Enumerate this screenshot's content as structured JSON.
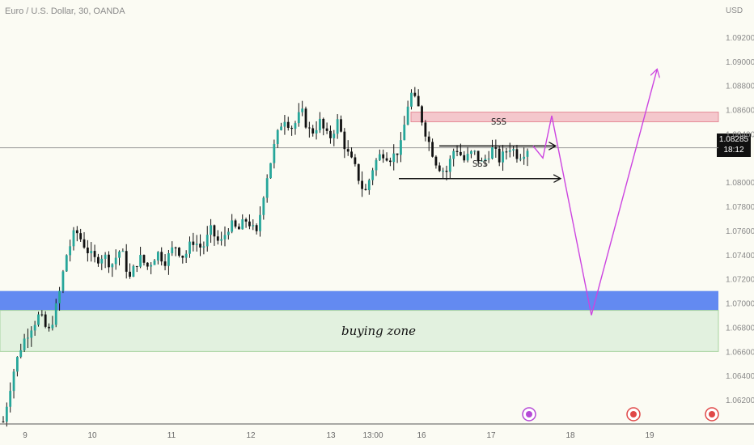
{
  "chart_data": {
    "type": "candlestick",
    "title": "Euro / U.S. Dollar, 30, OANDA",
    "currency": "USD",
    "ylim": [
      1.06,
      1.0928
    ],
    "y_ticks": [
      "1.09200",
      "1.09000",
      "1.08800",
      "1.08600",
      "1.08400",
      "1.08000",
      "1.07800",
      "1.07600",
      "1.07400",
      "1.07200",
      "1.07000",
      "1.06800",
      "1.06600",
      "1.06400",
      "1.06200"
    ],
    "x_ticks": [
      "9",
      "10",
      "11",
      "12",
      "13",
      "13:00",
      "16",
      "17",
      "18",
      "19"
    ],
    "current_price": "1.08285",
    "countdown": "18:12",
    "price_path": [
      1.0602,
      1.064,
      1.0665,
      1.068,
      1.069,
      1.0675,
      1.07,
      1.074,
      1.076,
      1.0748,
      1.0735,
      1.074,
      1.0732,
      1.0745,
      1.072,
      1.0738,
      1.073,
      1.0742,
      1.0735,
      1.0748,
      1.0738,
      1.0752,
      1.0745,
      1.076,
      1.0748,
      1.0765,
      1.076,
      1.077,
      1.0755,
      1.08,
      1.083,
      1.0855,
      1.0845,
      1.0858,
      1.084,
      1.085,
      1.0835,
      1.085,
      1.0825,
      1.081,
      1.079,
      1.0815,
      1.0825,
      1.082,
      1.083,
      1.0875,
      1.086,
      1.0835,
      1.0815,
      1.0808,
      1.083,
      1.0818,
      1.0825,
      1.0815,
      1.0828,
      1.0818,
      1.083,
      1.0822,
      1.08285
    ],
    "zones": [
      {
        "name": "supply zone",
        "from": 1.085,
        "to": 1.0858,
        "color": "#f4c7cc"
      },
      {
        "name": "blue zone",
        "from": 1.0694,
        "to": 1.071,
        "color": "#5b84f0"
      },
      {
        "name": "buying zone",
        "from": 1.066,
        "to": 1.0694,
        "color": "#e2f1df",
        "label": "buying zone"
      }
    ],
    "annotations": [
      {
        "text": "SSS",
        "level": 1.0835
      },
      {
        "text": "SSS",
        "level": 1.0807
      }
    ],
    "projection": [
      1.083,
      1.082,
      1.0855,
      1.069,
      1.0893
    ],
    "colors": {
      "up": "#26a69a",
      "down": "#111111",
      "projection": "#cc44e0",
      "wick": "#111111"
    }
  }
}
